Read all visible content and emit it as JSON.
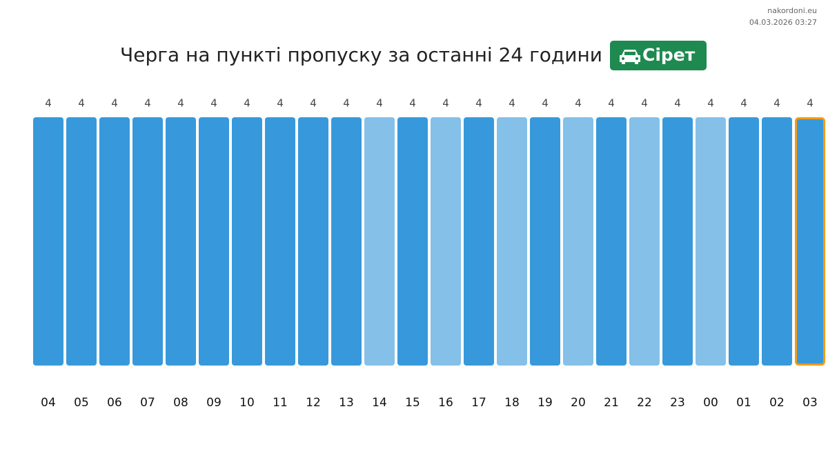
{
  "chart_data": {
    "type": "bar",
    "title": "Черга на пункті пропуску за останні 24 години",
    "badge": "Сірет",
    "source": "nakordoni.eu",
    "timestamp": "04.03.2026 03:27",
    "categories": [
      "04",
      "05",
      "06",
      "07",
      "08",
      "09",
      "10",
      "11",
      "12",
      "13",
      "14",
      "15",
      "16",
      "17",
      "18",
      "19",
      "20",
      "21",
      "22",
      "23",
      "00",
      "01",
      "02",
      "03"
    ],
    "values": [
      4,
      4,
      4,
      4,
      4,
      4,
      4,
      4,
      4,
      4,
      4,
      4,
      4,
      4,
      4,
      4,
      4,
      4,
      4,
      4,
      4,
      4,
      4,
      4
    ],
    "colors": [
      "#3799db",
      "#3799db",
      "#3799db",
      "#3799db",
      "#3799db",
      "#3799db",
      "#3799db",
      "#3799db",
      "#3799db",
      "#3799db",
      "#85c0e8",
      "#3799db",
      "#85c0e8",
      "#3799db",
      "#85c0e8",
      "#3799db",
      "#85c0e8",
      "#3799db",
      "#85c0e8",
      "#3799db",
      "#85c0e8",
      "#3799db",
      "#3799db",
      "#3799db"
    ],
    "highlight": "03",
    "highlight_color": "#f39c12",
    "badge_color": "#1e8a50"
  }
}
